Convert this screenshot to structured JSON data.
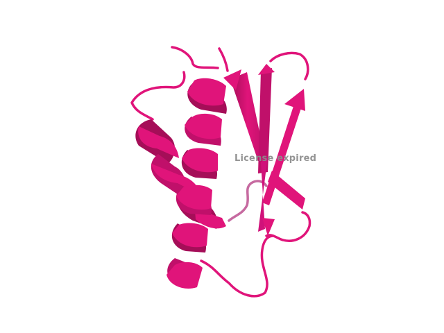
{
  "viewer": {
    "background_color": "#ffffff",
    "watermark_text": "License expired",
    "watermark_color": "#8c8c8c"
  },
  "structure": {
    "representation": "cartoon",
    "color": "#e0147a",
    "shade_color": "#a50e58",
    "elements": [
      "helix",
      "helix",
      "beta-strand",
      "beta-strand",
      "beta-strand",
      "beta-strand",
      "loop"
    ]
  }
}
